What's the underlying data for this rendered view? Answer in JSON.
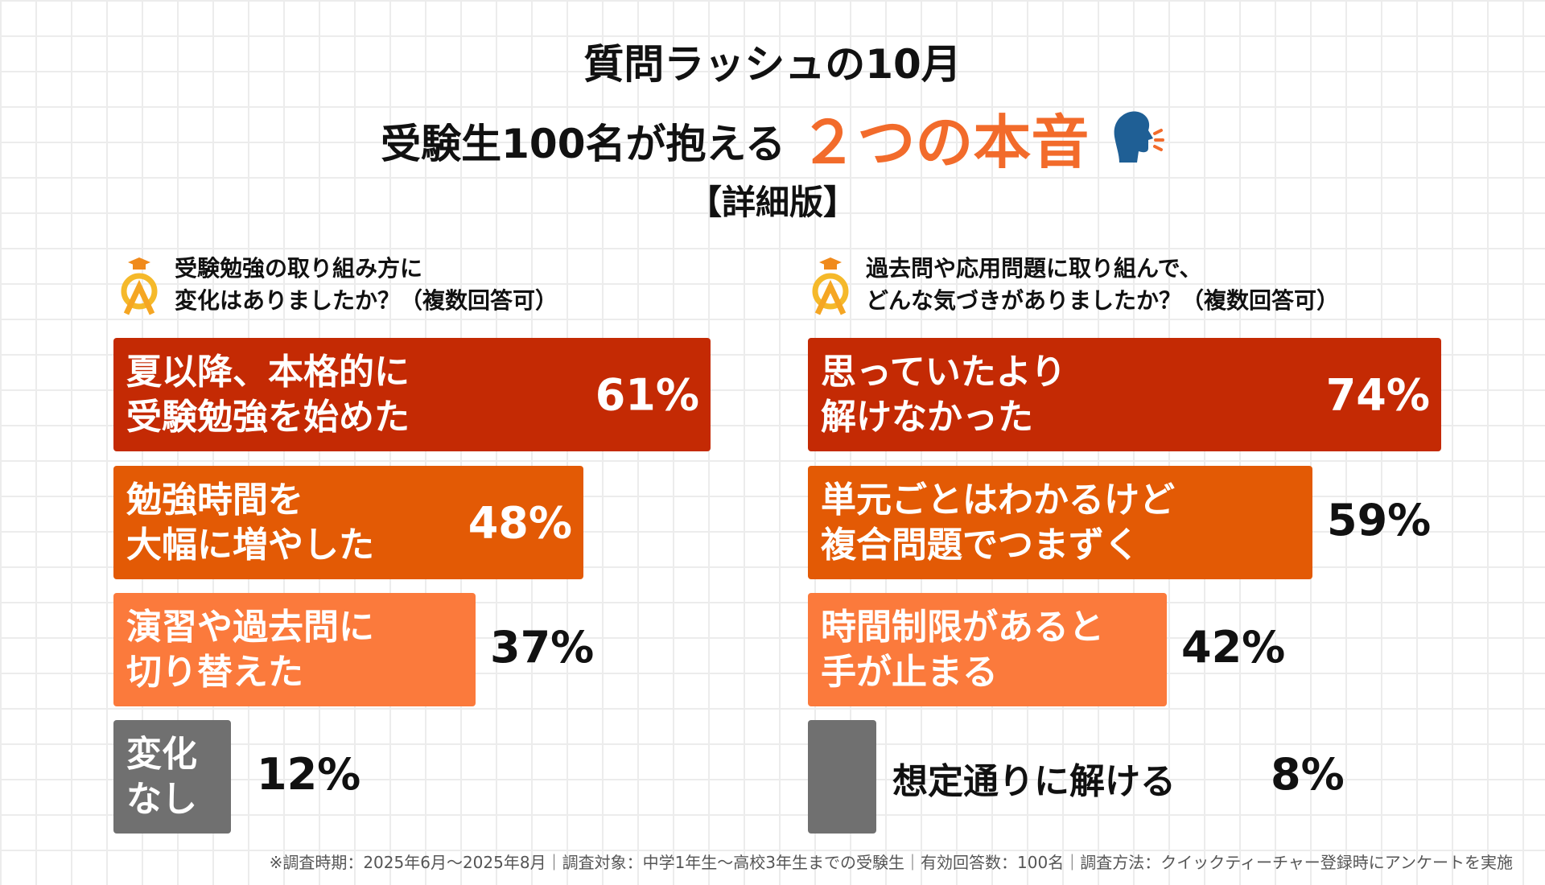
{
  "title": {
    "line1": "質問ラッシュの10月",
    "line2_prefix": "受験生100名が抱える",
    "line2_highlight": "２つの本音",
    "line3": "【詳細版】"
  },
  "colors": {
    "c1": "#c42a04",
    "c2": "#e35a05",
    "c3": "#fb7a3c",
    "c4": "#707070",
    "accent": "#f26b2b"
  },
  "chart_data": [
    {
      "type": "bar",
      "orientation": "horizontal",
      "title": "受験勉強の取り組み方に\n変化はありましたか？（複数回答可）",
      "unit": "%",
      "categories": [
        "夏以降、本格的に\n受験勉強を始めた",
        "勉強時間を\n大幅に増やした",
        "演習や過去問に\n切り替えた",
        "変化\nなし"
      ],
      "values": [
        61,
        48,
        37,
        12
      ],
      "labels": [
        "61%",
        "48%",
        "37%",
        "12%"
      ]
    },
    {
      "type": "bar",
      "orientation": "horizontal",
      "title": "過去問や応用問題に取り組んで、\nどんな気づきがありましたか？（複数回答可）",
      "unit": "%",
      "categories": [
        "思っていたより\n解けなかった",
        "単元ごとはわかるけど\n複合問題でつまずく",
        "時間制限があると\n手が止まる",
        "想定通りに解ける"
      ],
      "values": [
        74,
        59,
        42,
        8
      ],
      "labels": [
        "74%",
        "59%",
        "42%",
        "8%"
      ]
    }
  ],
  "footer": "※調査時期：2025年6月〜2025年8月｜調査対象：中学1年生〜高校3年生までの受験生｜有効回答数：100名｜調査方法：クイックティーチャー登録時にアンケートを実施"
}
